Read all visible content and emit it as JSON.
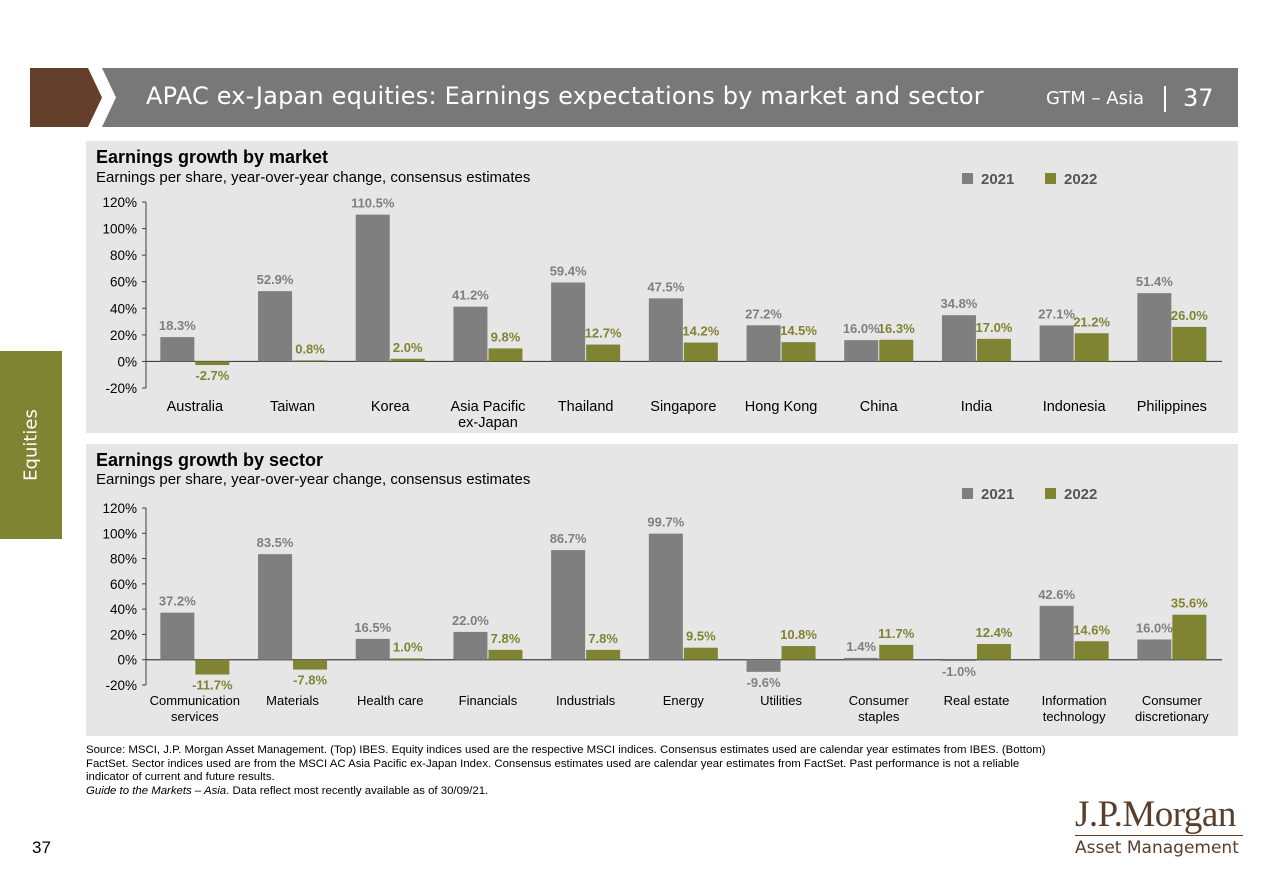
{
  "header": {
    "title": "APAC ex-Japan equities: Earnings expectations by market and sector",
    "guide": "GTM – Asia",
    "page": "37"
  },
  "side_tab": {
    "label": "Equities"
  },
  "colors": {
    "series_2021": "#7f7f7f",
    "series_2022": "#7f8433",
    "header_gray": "#787878",
    "header_brown": "#633f2c",
    "panel_bg": "#e6e6e6",
    "side_tab": "#7f8433"
  },
  "chart_data": [
    {
      "type": "bar",
      "title": "Earnings growth by market",
      "subtitle": "Earnings per share, year-over-year change, consensus estimates",
      "categories": [
        "Australia",
        "Taiwan",
        "Korea",
        "Asia Pacific\nex-Japan",
        "Thailand",
        "Singapore",
        "Hong Kong",
        "China",
        "India",
        "Indonesia",
        "Philippines"
      ],
      "series": [
        {
          "name": "2021",
          "values": [
            18.3,
            52.9,
            110.5,
            41.2,
            59.4,
            47.5,
            27.2,
            16.0,
            34.8,
            27.1,
            51.4
          ],
          "labels": [
            "18.3%",
            "52.9%",
            "110.5%",
            "41.2%",
            "59.4%",
            "47.5%",
            "27.2%",
            "16.0%",
            "34.8%",
            "27.1%",
            "51.4%"
          ]
        },
        {
          "name": "2022",
          "values": [
            -2.7,
            0.8,
            2.0,
            9.8,
            12.7,
            14.2,
            14.5,
            16.3,
            17.0,
            21.2,
            26.0
          ],
          "labels": [
            "-2.7%",
            "0.8%",
            "2.0%",
            "9.8%",
            "12.7%",
            "14.2%",
            "14.5%",
            "16.3%",
            "17.0%",
            "21.2%",
            "26.0%"
          ]
        }
      ],
      "ylim": [
        -20,
        120
      ],
      "yticks": [
        "120%",
        "100%",
        "80%",
        "60%",
        "40%",
        "20%",
        "0%",
        "-20%"
      ],
      "legend": "top-right",
      "grid": false
    },
    {
      "type": "bar",
      "title": "Earnings growth by sector",
      "subtitle": "Earnings per share, year-over-year change, consensus estimates",
      "categories": [
        "Communication\nservices",
        "Materials",
        "Health care",
        "Financials",
        "Industrials",
        "Energy",
        "Utilities",
        "Consumer\nstaples",
        "Real estate",
        "Information\ntechnology",
        "Consumer\ndiscretionary"
      ],
      "series": [
        {
          "name": "2021",
          "values": [
            37.2,
            83.5,
            16.5,
            22.0,
            86.7,
            99.7,
            -9.6,
            1.4,
            -1.0,
            42.6,
            16.0
          ],
          "labels": [
            "37.2%",
            "83.5%",
            "16.5%",
            "22.0%",
            "86.7%",
            "99.7%",
            "-9.6%",
            "1.4%",
            "-1.0%",
            "42.6%",
            "16.0%"
          ]
        },
        {
          "name": "2022",
          "values": [
            -11.7,
            -7.8,
            1.0,
            7.8,
            7.8,
            9.5,
            10.8,
            11.7,
            12.4,
            14.6,
            35.6
          ],
          "labels": [
            "-11.7%",
            "-7.8%",
            "1.0%",
            "7.8%",
            "7.8%",
            "9.5%",
            "10.8%",
            "11.7%",
            "12.4%",
            "14.6%",
            "35.6%"
          ]
        }
      ],
      "ylim": [
        -20,
        120
      ],
      "yticks": [
        "120%",
        "100%",
        "80%",
        "60%",
        "40%",
        "20%",
        "0%",
        "-20%"
      ],
      "legend": "top-right",
      "grid": false
    }
  ],
  "source": {
    "text": "Source: MSCI, J.P. Morgan Asset Management. (Top) IBES. Equity indices used are the respective MSCI indices. Consensus estimates used are calendar year estimates from IBES. (Bottom) FactSet. Sector indices used are from the MSCI AC Asia Pacific ex-Japan Index. Consensus estimates used are calendar year estimates from FactSet. Past performance is not a reliable indicator of current and future results.",
    "guide_italic": "Guide to the Markets – Asia",
    "date_note": ". Data reflect most recently available as of 30/09/21."
  },
  "footer": {
    "page": "37"
  },
  "logo": {
    "name": "J.P.Morgan",
    "tagline": "Asset Management"
  }
}
